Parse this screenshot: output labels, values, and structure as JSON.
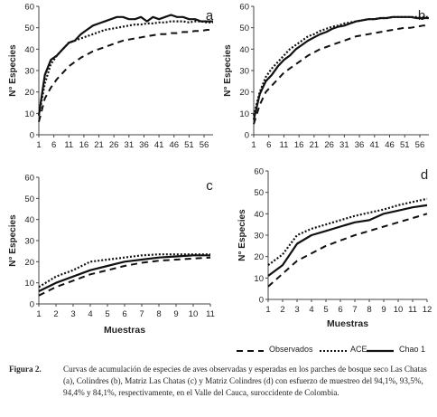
{
  "chart_data": [
    {
      "type": "line",
      "panel_letter": "a",
      "ylabel": "N° Especies",
      "xlabel": "",
      "ylim": [
        0,
        60
      ],
      "yticks": [
        0,
        10,
        20,
        30,
        40,
        50,
        60
      ],
      "x": [
        1,
        3,
        5,
        7,
        9,
        11,
        13,
        15,
        17,
        19,
        21,
        23,
        25,
        27,
        29,
        31,
        33,
        35,
        37,
        39,
        41,
        43,
        45,
        47,
        49,
        51,
        53,
        55,
        57,
        59
      ],
      "xtick_labels": [
        "1",
        "6",
        "11",
        "16",
        "21",
        "26",
        "31",
        "36",
        "41",
        "46",
        "51",
        "56"
      ],
      "series": [
        {
          "name": "Observados",
          "style": "dashed",
          "values": [
            6,
            17,
            22,
            26,
            29,
            32,
            34,
            36,
            37.5,
            39,
            40,
            41,
            42,
            43,
            44,
            44.5,
            45,
            45.5,
            46,
            46.5,
            47,
            47,
            47.5,
            47.5,
            48,
            48,
            48.5,
            48.5,
            49,
            49
          ]
        },
        {
          "name": "ACE",
          "style": "dotted",
          "values": [
            9,
            24,
            33,
            37,
            40,
            43,
            44,
            45,
            46,
            47,
            48,
            49,
            49.5,
            50,
            50.5,
            51,
            51.5,
            51.5,
            52,
            52,
            52.5,
            52.5,
            53,
            53,
            53,
            52.5,
            53,
            53,
            52.5,
            52.5
          ]
        },
        {
          "name": "Chao 1",
          "style": "solid",
          "values": [
            9,
            28,
            35,
            37,
            40,
            43,
            44,
            47,
            49,
            51,
            52,
            53,
            54,
            55,
            55,
            54,
            54,
            55,
            53,
            55,
            54,
            55,
            56,
            55,
            55,
            54,
            54,
            53,
            53,
            53
          ]
        }
      ]
    },
    {
      "type": "line",
      "panel_letter": "b",
      "ylabel": "N° Especies",
      "xlabel": "",
      "ylim": [
        0,
        60
      ],
      "yticks": [
        0,
        10,
        20,
        30,
        40,
        50,
        60
      ],
      "x": [
        1,
        3,
        5,
        7,
        9,
        11,
        13,
        15,
        17,
        19,
        21,
        23,
        25,
        27,
        29,
        31,
        33,
        35,
        37,
        39,
        41,
        43,
        45,
        47,
        49,
        51,
        53,
        55,
        57,
        59
      ],
      "xtick_labels": [
        "1",
        "6",
        "11",
        "16",
        "21",
        "26",
        "31",
        "36",
        "41",
        "46",
        "51",
        "56"
      ],
      "series": [
        {
          "name": "Observados",
          "style": "dashed",
          "values": [
            5,
            14,
            20,
            23,
            26,
            29,
            31,
            33,
            35,
            37,
            38.5,
            40,
            41,
            42,
            43,
            44,
            45,
            46,
            46.5,
            47,
            47.5,
            48,
            48.5,
            49,
            49.5,
            50,
            50,
            50.5,
            51,
            51
          ]
        },
        {
          "name": "ACE",
          "style": "dotted",
          "values": [
            9,
            20,
            27,
            31,
            34,
            37,
            40,
            42,
            44,
            46,
            47,
            48.5,
            49.5,
            50.5,
            51,
            52,
            52.5,
            53,
            53.5,
            54,
            54,
            54.5,
            54.5,
            55,
            55,
            55,
            55,
            55,
            55,
            55
          ]
        },
        {
          "name": "Chao 1",
          "style": "solid",
          "values": [
            7,
            19,
            25,
            28,
            32,
            35,
            37,
            40,
            42,
            44,
            45.5,
            47,
            48,
            49.5,
            50.5,
            51,
            52,
            53,
            53.5,
            54,
            54,
            54.5,
            54.5,
            55,
            55,
            55,
            55,
            54.5,
            54.5,
            54.5
          ]
        }
      ]
    },
    {
      "type": "line",
      "panel_letter": "c",
      "ylabel": "N° Especies",
      "xlabel": "Muestras",
      "ylim": [
        0,
        60
      ],
      "yticks": [
        0,
        10,
        20,
        30,
        40,
        50,
        60
      ],
      "x": [
        1,
        2,
        3,
        4,
        5,
        6,
        7,
        8,
        9,
        10,
        11
      ],
      "xtick_labels": [
        "1",
        "2",
        "3",
        "4",
        "5",
        "6",
        "7",
        "8",
        "9",
        "10",
        "11"
      ],
      "series": [
        {
          "name": "Observados",
          "style": "dashed",
          "values": [
            4,
            8,
            11,
            14,
            16,
            18,
            19.5,
            20.5,
            21,
            21.5,
            22
          ]
        },
        {
          "name": "ACE",
          "style": "dotted",
          "values": [
            8,
            13,
            16,
            20,
            21,
            22,
            23,
            23.5,
            23.5,
            23.5,
            23.5
          ]
        },
        {
          "name": "Chao 1",
          "style": "solid",
          "values": [
            6,
            10,
            13,
            16,
            18,
            20,
            21,
            22,
            22.5,
            23,
            23
          ]
        }
      ]
    },
    {
      "type": "line",
      "panel_letter": "d",
      "ylabel": "N° Especies",
      "xlabel": "Muestras",
      "ylim": [
        0,
        60
      ],
      "yticks": [
        0,
        10,
        20,
        30,
        40,
        50,
        60
      ],
      "x": [
        1,
        2,
        3,
        4,
        5,
        6,
        7,
        8,
        9,
        10,
        11,
        12
      ],
      "xtick_labels": [
        "1",
        "2",
        "3",
        "4",
        "5",
        "6",
        "7",
        "8",
        "9",
        "10",
        "11",
        "12"
      ],
      "series": [
        {
          "name": "Observados",
          "style": "dashed",
          "values": [
            6,
            12,
            18,
            21.5,
            25,
            27.5,
            30,
            32,
            34,
            36,
            38,
            40
          ]
        },
        {
          "name": "ACE",
          "style": "dotted",
          "values": [
            16,
            21,
            30,
            33,
            35,
            37,
            39,
            40.5,
            42,
            44,
            45.5,
            47
          ]
        },
        {
          "name": "Chao 1",
          "style": "solid",
          "values": [
            11,
            16,
            26,
            30,
            32,
            34,
            36,
            37,
            40,
            41.5,
            43,
            44
          ]
        }
      ]
    }
  ],
  "legend": {
    "items": [
      {
        "label": "Observados",
        "style": "dashed"
      },
      {
        "label": "ACE",
        "style": "dotted"
      },
      {
        "label": "Chao 1",
        "style": "solid"
      }
    ]
  },
  "caption": {
    "label": "Figura 2.",
    "text": "Curvas de acumulación de especies de aves observadas y esperadas en los parches de bosque seco Las Chatas (a), Colindres (b), Matriz Las Chatas (c) y Matriz Colindres (d) con esfuerzo de muestreo del 94,1%, 93,5%, 94,4% y  84,1%, respectivamente, en el Valle del Cauca, suroccidente de Colombia."
  }
}
